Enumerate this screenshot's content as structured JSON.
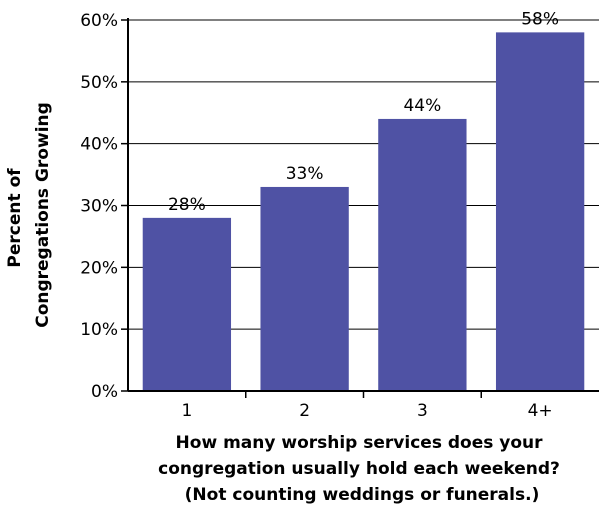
{
  "chart_data": {
    "type": "bar",
    "title": "",
    "categories": [
      "1",
      "2",
      "3",
      "4+"
    ],
    "values": [
      28,
      33,
      44,
      58
    ],
    "data_labels": [
      "28%",
      "33%",
      "44%",
      "58%"
    ],
    "ylim": [
      0,
      60
    ],
    "y_ticks": [
      0,
      10,
      20,
      30,
      40,
      50,
      60
    ],
    "y_tick_labels": [
      "0%",
      "10%",
      "20%",
      "30%",
      "40%",
      "50%",
      "60%"
    ],
    "ylabel_lines": [
      "Percent of",
      "Congregations Growing"
    ],
    "xlabel_lines": [
      "How many worship services does your",
      "congregation usually hold each weekend?",
      "(Not counting weddings or funerals.)"
    ],
    "grid": true,
    "legend": "none",
    "bar_color": "#4f52a4",
    "grid_color": "#000000"
  }
}
